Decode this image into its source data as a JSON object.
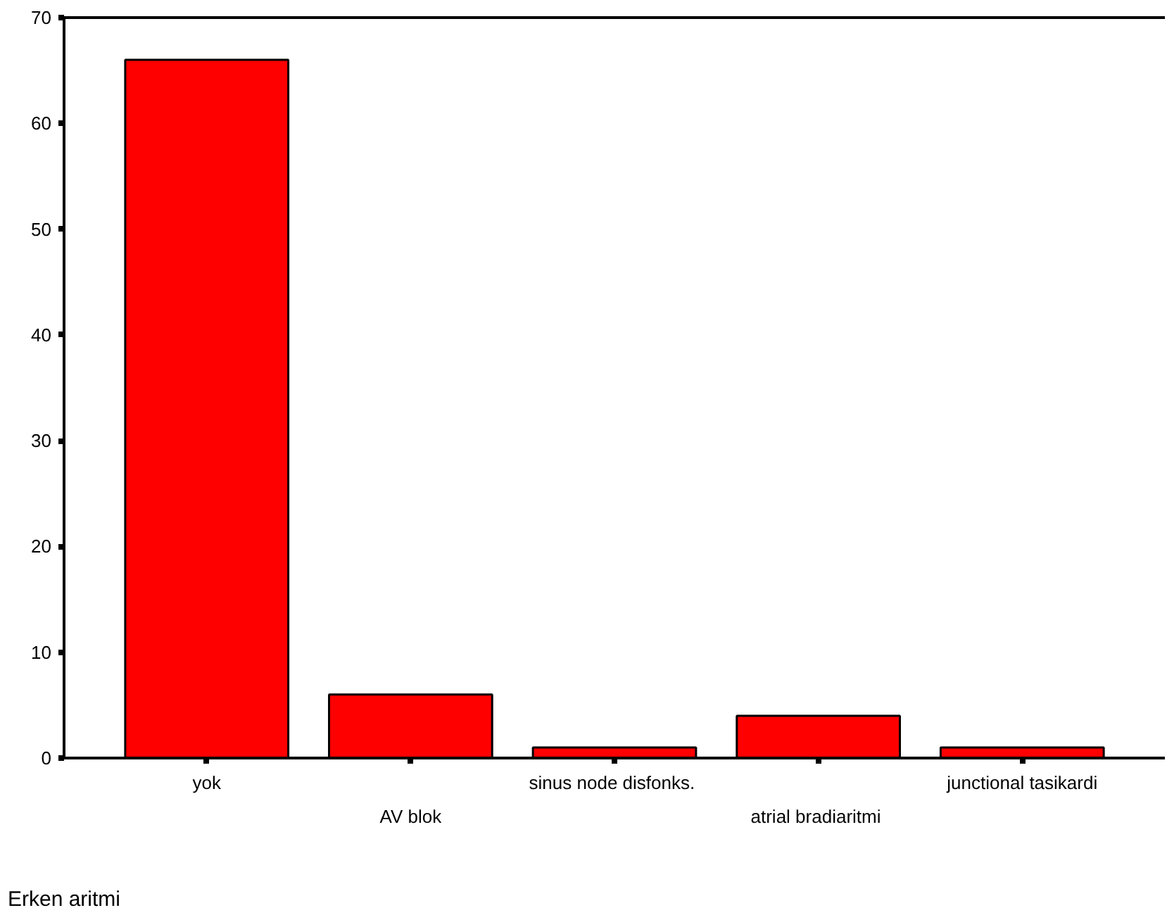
{
  "chart_data": {
    "type": "bar",
    "xlabel": "Erken aritmi",
    "categories": [
      "yok",
      "AV blok",
      "sinus  node disfonks.",
      "atrial  bradiaritmi",
      "junctional tasikardi"
    ],
    "values": [
      66,
      6,
      1,
      4,
      1
    ],
    "color": "#ff0000",
    "ylim": [
      0,
      70
    ],
    "yticks": [
      0,
      10,
      20,
      30,
      40,
      50,
      60,
      70
    ],
    "grid": false
  }
}
